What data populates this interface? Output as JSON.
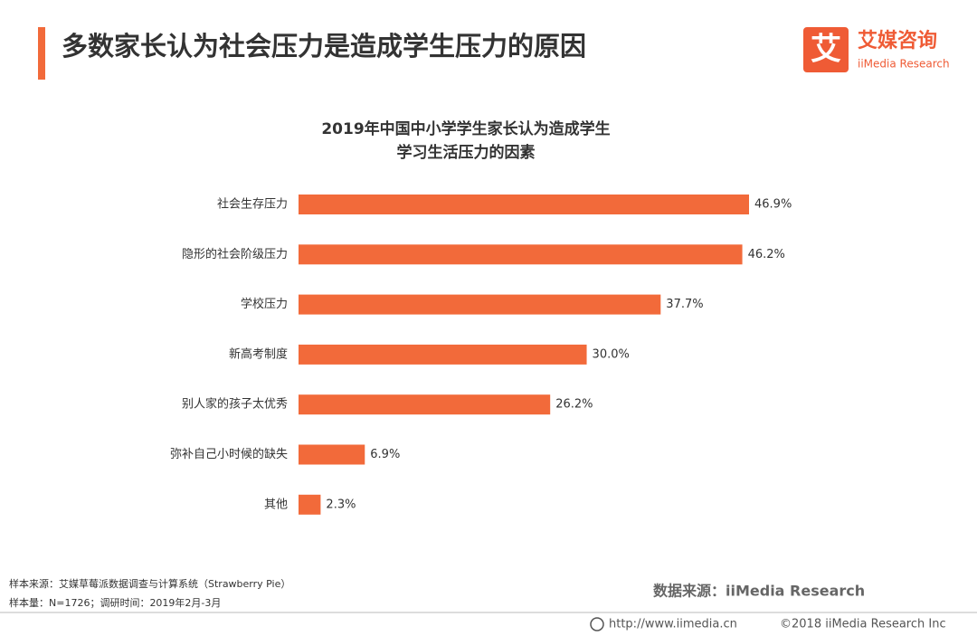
{
  "header": {
    "title": "多数家长认为社会压力是造成学生压力的原因",
    "logo_mark": "艾",
    "logo_name": "艾媒咨询",
    "logo_sub": "iiMedia Research"
  },
  "chart_data": {
    "type": "hbar",
    "title_lines": [
      "2019年中国中小学学生家长认为造成学生",
      "学习生活压力的因素"
    ],
    "categories": [
      "社会生存压力",
      "隐形的社会阶级压力",
      "学校压力",
      "新高考制度",
      "别人家的孩子太优秀",
      "弥补自己小时候的缺失",
      "其他"
    ],
    "values": [
      46.9,
      46.2,
      37.7,
      30.0,
      26.2,
      6.9,
      2.3
    ],
    "value_labels": [
      "46.9%",
      "46.2%",
      "37.7%",
      "30.0%",
      "26.2%",
      "6.9%",
      "2.3%"
    ],
    "color": "#f26a3a"
  },
  "footer": {
    "sample_source": "样本来源：艾媒草莓派数据调查与计算系统（Strawberry Pie）",
    "sample_size": "样本量：N=1726；调研时间：2019年2月-3月",
    "data_source": "数据来源：iiMedia Research",
    "url": "http://www.iimedia.cn",
    "copyright": "©2018 iiMedia Research Inc"
  }
}
